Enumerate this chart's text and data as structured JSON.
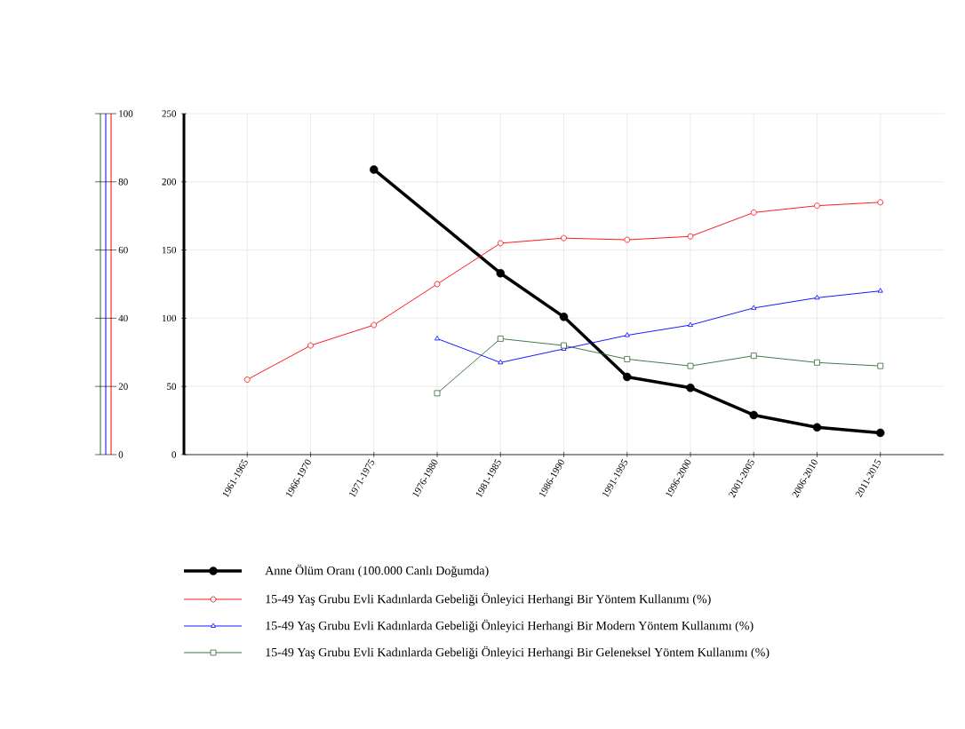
{
  "chart_data": {
    "type": "line",
    "categories": [
      "1961-1965",
      "1966-1970",
      "1971-1975",
      "1976-1980",
      "1981-1985",
      "1986-1990",
      "1991-1995",
      "1996-2000",
      "2001-2005",
      "2006-2010",
      "2011-2015"
    ],
    "series": [
      {
        "name": "Anne Ölüm Oranı (100.000 Canlı Doğumda)",
        "color": "#000000",
        "axis": "y",
        "marker": "circle",
        "values": [
          null,
          null,
          209,
          null,
          133,
          101,
          57,
          49,
          29,
          20,
          16
        ]
      },
      {
        "name": "15-49 Yaş Grubu Evli Kadınlarda Gebeliği Önleyici Herhangi Bir Yöntem Kullanımı (%)",
        "color": "#ff0000",
        "axis": "y2",
        "marker": "circle",
        "values": [
          22,
          32,
          38,
          50,
          62,
          63.5,
          63,
          64,
          71,
          73,
          74
        ]
      },
      {
        "name": "15-49 Yaş Grubu Evli Kadınlarda Gebeliği Önleyici Herhangi Bir Modern Yöntem Kullanımı  (%)",
        "color": "#0000ff",
        "axis": "y2",
        "marker": "triangle",
        "values": [
          null,
          null,
          null,
          34,
          27,
          31,
          35,
          38,
          43,
          46,
          48
        ]
      },
      {
        "name": "15-49 Yaş Grubu Evli Kadınlarda Gebeliği Önleyici Herhangi Bir Geleneksel Yöntem Kullanımı  (%)",
        "color": "#2e6b3a",
        "axis": "y2",
        "marker": "square",
        "values": [
          null,
          null,
          null,
          18,
          34,
          32,
          28,
          26,
          29,
          27,
          26
        ]
      }
    ],
    "ylim": [
      0,
      250
    ],
    "yticks": [
      0,
      50,
      100,
      150,
      200,
      250
    ],
    "y2lim": [
      0,
      100
    ],
    "y2ticks": [
      0,
      20,
      40,
      60,
      80,
      100
    ],
    "grid": true,
    "legend": "bottom"
  }
}
